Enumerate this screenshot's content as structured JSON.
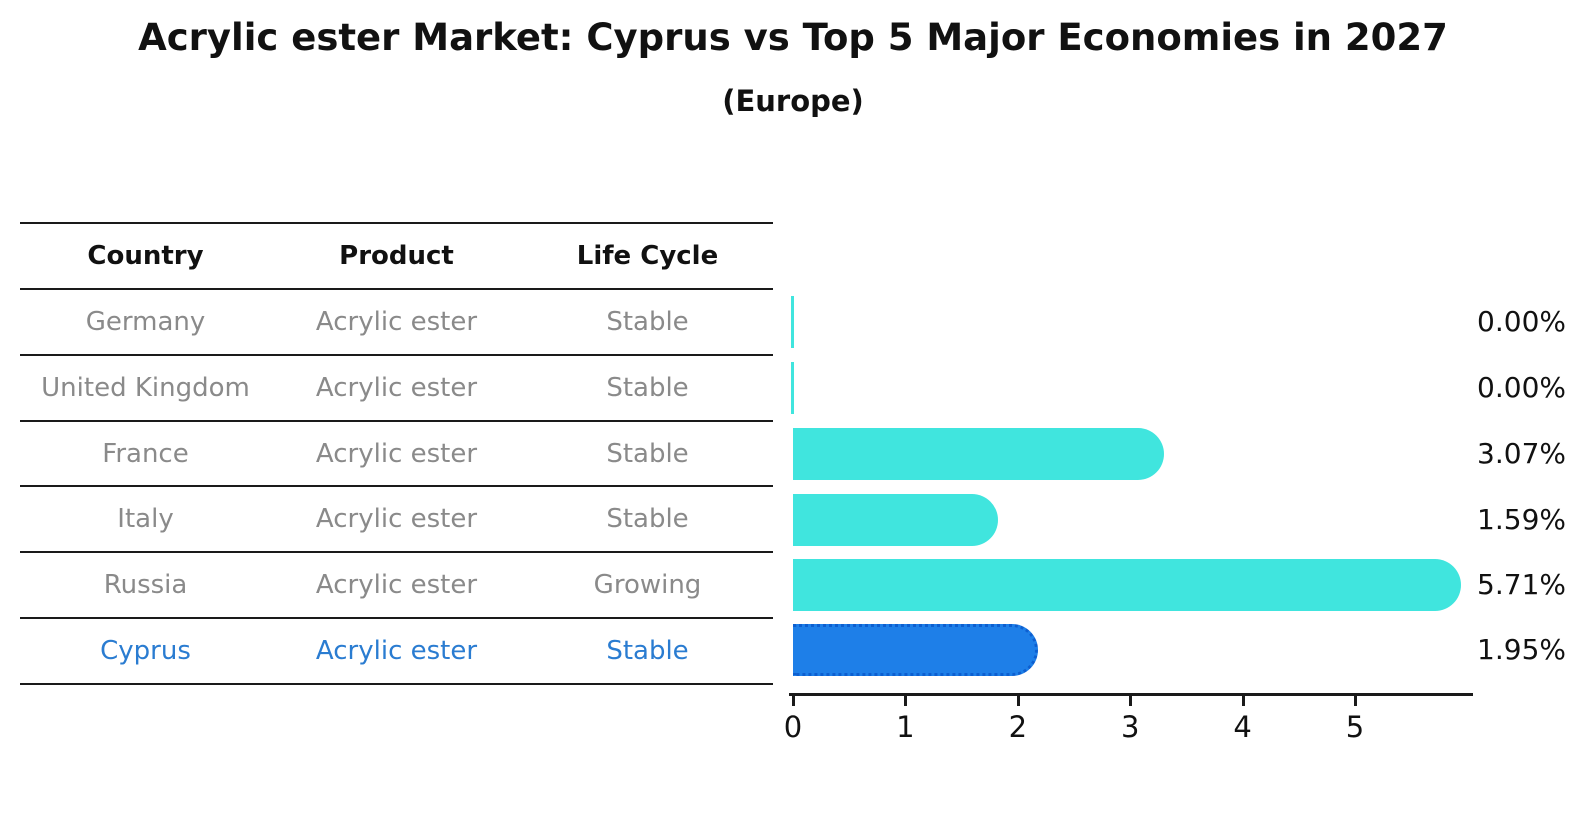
{
  "title": "Acrylic ester Market: Cyprus vs Top 5 Major Economies in 2027",
  "subtitle": "(Europe)",
  "table": {
    "headers": [
      "Country",
      "Product",
      "Life Cycle"
    ],
    "rows": [
      {
        "country": "Germany",
        "product": "Acrylic ester",
        "life_cycle": "Stable",
        "highlight": false
      },
      {
        "country": "United Kingdom",
        "product": "Acrylic ester",
        "life_cycle": "Stable",
        "highlight": false
      },
      {
        "country": "France",
        "product": "Acrylic ester",
        "life_cycle": "Stable",
        "highlight": false
      },
      {
        "country": "Italy",
        "product": "Acrylic ester",
        "life_cycle": "Stable",
        "highlight": false
      },
      {
        "country": "Russia",
        "product": "Acrylic ester",
        "life_cycle": "Growing",
        "highlight": false
      },
      {
        "country": "Cyprus",
        "product": "Acrylic ester",
        "life_cycle": "Stable",
        "highlight": true
      }
    ]
  },
  "chart_data": {
    "type": "bar",
    "orientation": "horizontal",
    "title": "Acrylic ester Market: Cyprus vs Top 5 Major Economies in 2027 (Europe)",
    "categories": [
      "Germany",
      "United Kingdom",
      "France",
      "Italy",
      "Russia",
      "Cyprus"
    ],
    "values": [
      0.0,
      0.0,
      3.07,
      1.59,
      5.71,
      1.95
    ],
    "value_labels": [
      "0.00%",
      "0.00%",
      "3.07%",
      "1.59%",
      "5.71%",
      "1.95%"
    ],
    "x_ticks": [
      "0",
      "1",
      "2",
      "3",
      "4",
      "5"
    ],
    "xlim": [
      0,
      6.05
    ],
    "grid": false,
    "legend": null,
    "bar_color": "#40e5de",
    "highlight_bar_color": "#1e7fe8",
    "highlight_border_color": "#0d5fd0"
  },
  "colors": {
    "text_primary": "#111111",
    "text_muted": "#8a8a8a",
    "text_highlight": "#2a7cd1"
  }
}
